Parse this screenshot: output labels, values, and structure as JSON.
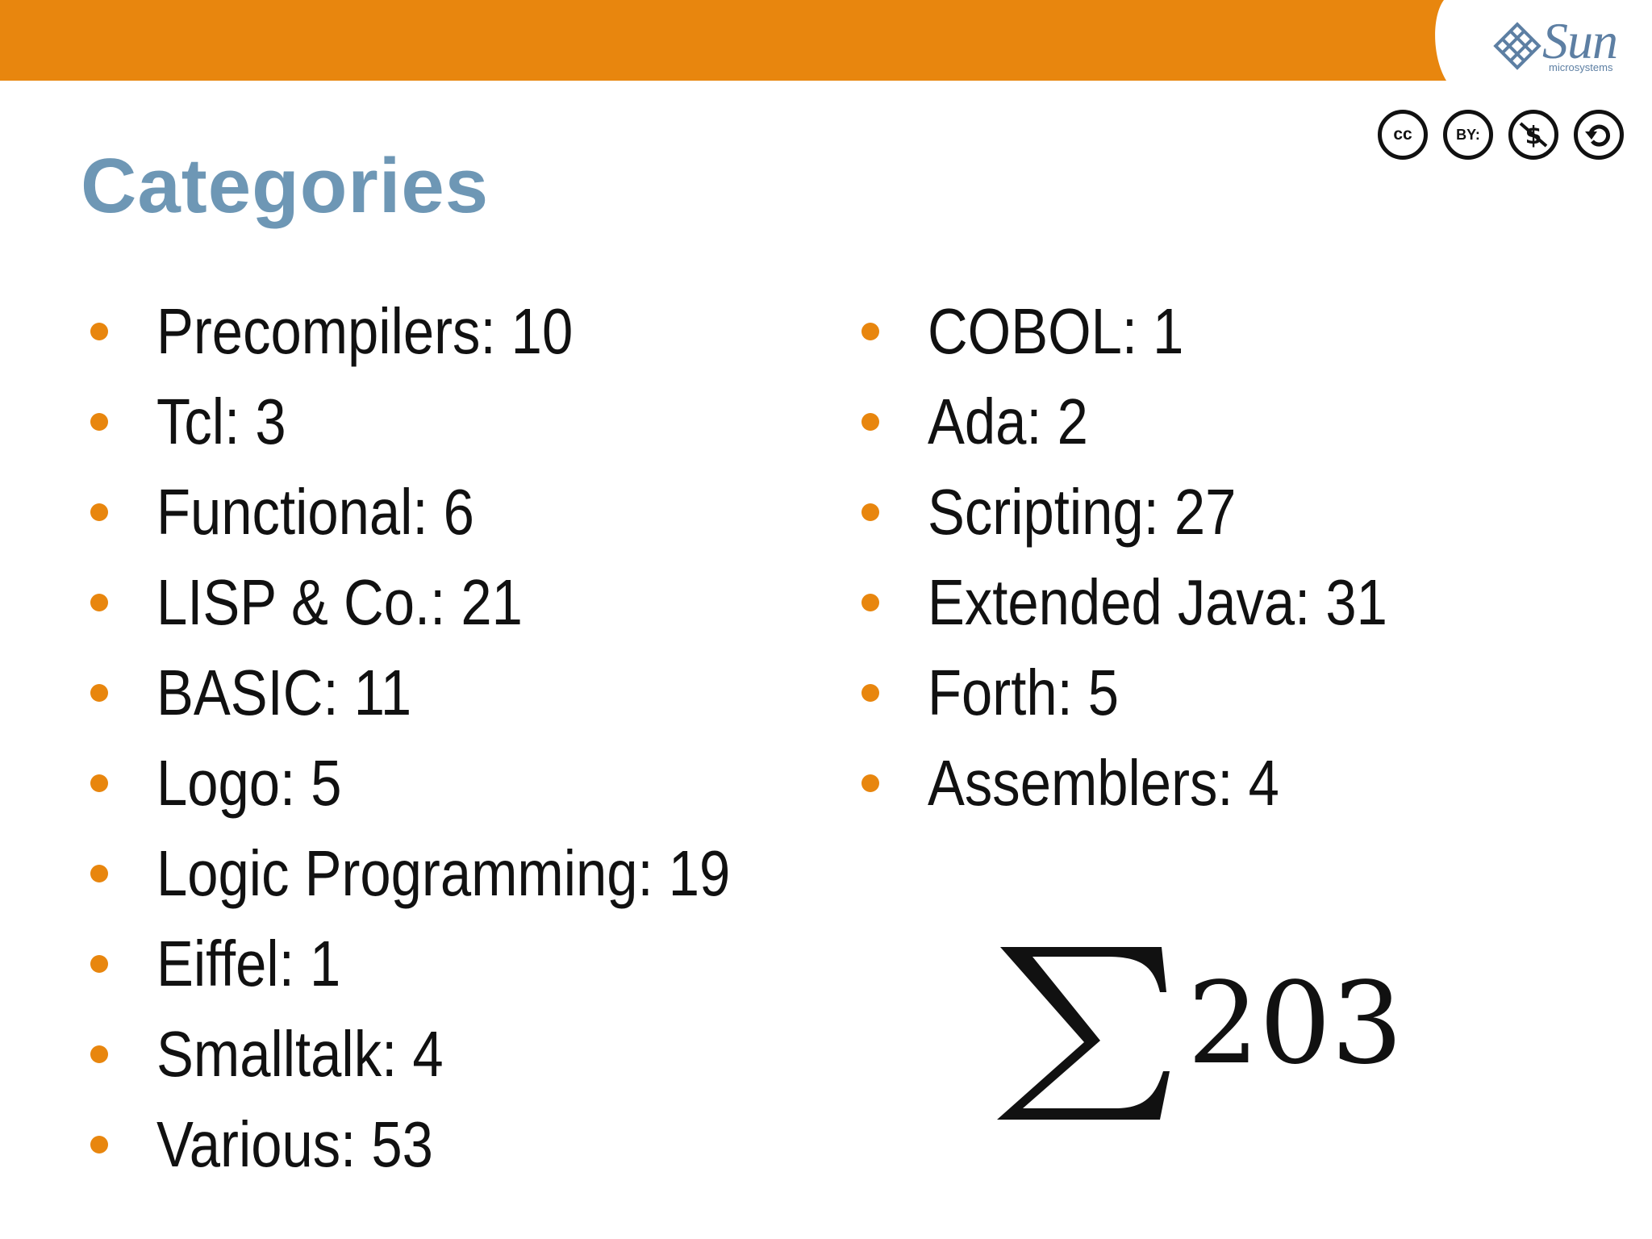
{
  "header": {
    "band_color": "#e8860e",
    "logo_text": "Sun",
    "logo_subtext": "microsystems"
  },
  "license_badges": [
    {
      "icon": "cc-icon",
      "text": "cc"
    },
    {
      "icon": "by-icon",
      "text": "BY:"
    },
    {
      "icon": "non-commercial-icon"
    },
    {
      "icon": "share-alike-icon"
    }
  ],
  "title": "Categories",
  "categories_left": [
    {
      "label": "Precompilers: 10"
    },
    {
      "label": "Tcl: 3"
    },
    {
      "label": "Functional: 6"
    },
    {
      "label": "LISP & Co.: 21"
    },
    {
      "label": "BASIC: 11"
    },
    {
      "label": "Logo: 5"
    },
    {
      "label": "Logic Programming: 19"
    },
    {
      "label": "Eiffel: 1"
    },
    {
      "label": "Smalltalk: 4"
    },
    {
      "label": "Various: 53"
    }
  ],
  "categories_right": [
    {
      "label": "COBOL: 1"
    },
    {
      "label": "Ada: 2"
    },
    {
      "label": "Scripting: 27"
    },
    {
      "label": "Extended Java: 31"
    },
    {
      "label": "Forth: 5"
    },
    {
      "label": "Assemblers: 4"
    }
  ],
  "sum": {
    "symbol": "sigma-icon",
    "value": "203"
  },
  "colors": {
    "accent": "#e8860e",
    "title": "#6e97b5",
    "logo": "#5d7fa3",
    "text": "#111111"
  }
}
